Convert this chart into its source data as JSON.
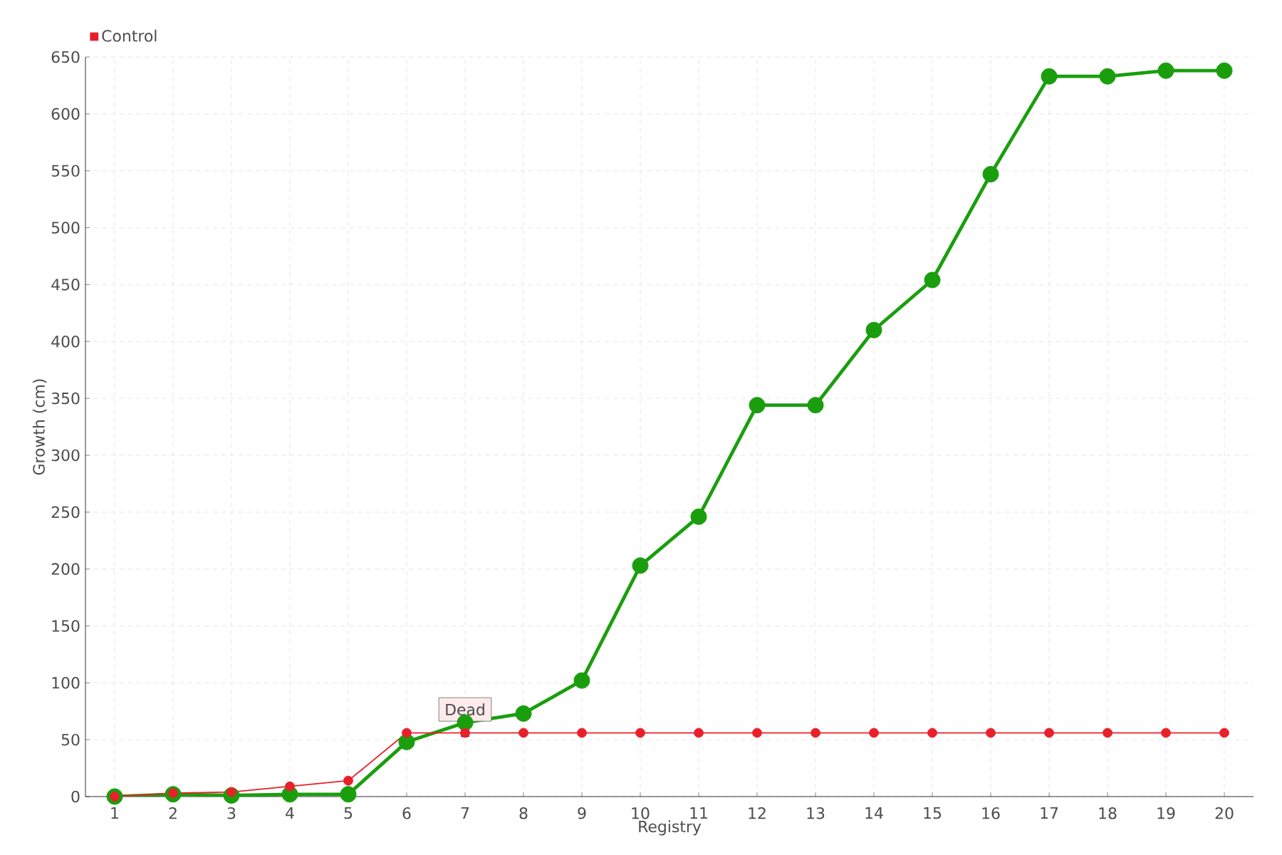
{
  "chart_data": {
    "type": "line",
    "xlabel": "Registry",
    "ylabel": "Growth (cm)",
    "categories": [
      "1",
      "2",
      "3",
      "4",
      "5",
      "6",
      "7",
      "8",
      "9",
      "10",
      "11",
      "12",
      "13",
      "14",
      "15",
      "16",
      "17",
      "18",
      "19",
      "20"
    ],
    "series": [
      {
        "color": "#1a9e0e",
        "values": [
          0,
          2,
          1,
          2,
          2,
          48,
          65,
          73,
          102,
          203,
          246,
          344,
          344,
          410,
          454,
          547,
          633,
          633,
          638,
          638
        ]
      },
      {
        "name": "Control",
        "color": "#e8202a",
        "values": [
          0,
          3,
          4,
          9,
          14,
          56,
          56,
          56,
          56,
          56,
          56,
          56,
          56,
          56,
          56,
          56,
          56,
          56,
          56,
          56
        ]
      }
    ],
    "annotations": [
      {
        "text": "Dead",
        "x": "7",
        "y": 56
      }
    ],
    "ylim": [
      0,
      650
    ],
    "yticks": [
      0,
      50,
      100,
      150,
      200,
      250,
      300,
      350,
      400,
      450,
      500,
      550,
      600,
      650
    ],
    "grid": true,
    "legend": "top left",
    "marker": "circle",
    "line_style": "solid"
  }
}
